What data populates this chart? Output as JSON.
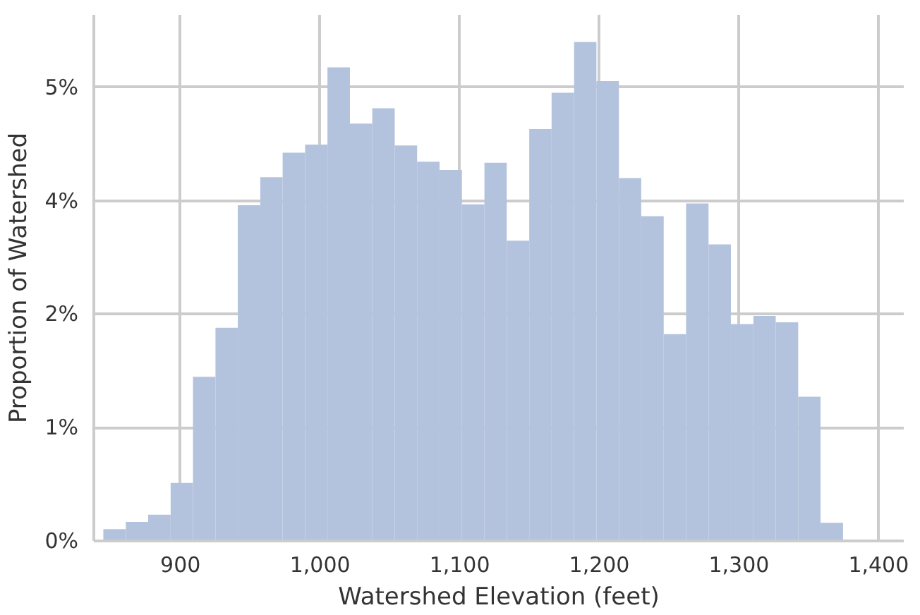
{
  "chart_data": {
    "type": "histogram",
    "xlabel": "Watershed Elevation (feet)",
    "ylabel": "Proportion of Watershed",
    "bins": [
      844.8,
      860.9,
      876.9,
      893.0,
      909.0,
      925.1,
      941.1,
      957.2,
      973.2,
      989.3,
      1005.3,
      1021.4,
      1037.4,
      1053.5,
      1069.5,
      1085.6,
      1101.6,
      1117.7,
      1133.7,
      1149.8,
      1165.8,
      1181.9,
      1197.9,
      1214.0,
      1230.0,
      1246.1,
      1262.1,
      1278.2,
      1294.2,
      1310.3,
      1326.3,
      1342.4,
      1358.4,
      1374.5
    ],
    "values": [
      0.13,
      0.21,
      0.29,
      0.64,
      1.81,
      2.35,
      3.7,
      4.01,
      4.28,
      4.37,
      5.22,
      4.6,
      4.77,
      4.36,
      4.18,
      4.09,
      3.71,
      4.17,
      3.31,
      4.54,
      4.94,
      5.5,
      5.07,
      4.0,
      3.58,
      2.28,
      3.72,
      3.27,
      2.39,
      2.48,
      2.41,
      1.59,
      0.2
    ],
    "color": "#b4c3dd",
    "xlim": [
      838,
      1418
    ],
    "ylim": [
      0,
      5.8
    ],
    "xticks": [
      {
        "value": 900,
        "label": "900"
      },
      {
        "value": 1000,
        "label": "1,000"
      },
      {
        "value": 1100,
        "label": "1,100"
      },
      {
        "value": 1200,
        "label": "1,200"
      },
      {
        "value": 1300,
        "label": "1,300"
      },
      {
        "value": 1400,
        "label": "1,400"
      }
    ],
    "yticks": [
      {
        "value": 0,
        "label": "0%"
      },
      {
        "value": 1.25,
        "label": "1%"
      },
      {
        "value": 2.5,
        "label": "2%"
      },
      {
        "value": 3.75,
        "label": "4%"
      },
      {
        "value": 5,
        "label": "5%"
      }
    ],
    "grid": true
  }
}
